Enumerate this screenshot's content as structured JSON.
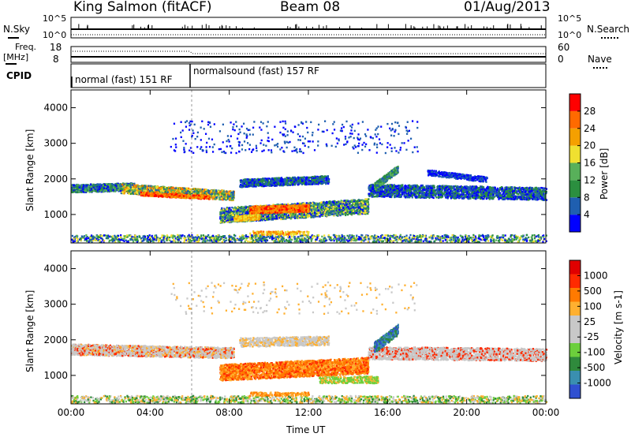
{
  "header": {
    "station": "King Salmon (fitACF)",
    "beam": "Beam 08",
    "date": "01/Aug/2013"
  },
  "noise_panel": {
    "left_label": "N.Sky",
    "left_ticks": [
      "10^5",
      "10^0"
    ],
    "right_label": "N.Search",
    "right_ticks": [
      "10^5",
      "10^0"
    ]
  },
  "freq_panel": {
    "left_label_top": "Freq.",
    "left_label_bottom": "[MHz]",
    "left_ticks": [
      "18",
      "8"
    ],
    "right_label": "Nave",
    "right_ticks": [
      "60",
      "0"
    ]
  },
  "cpid_panel": {
    "label": "CPID",
    "segments": [
      "normal (fast) 151 RF",
      "normalsound (fast) 157 RF"
    ]
  },
  "colors": {
    "power_scale": [
      "#0000ff",
      "#1f5fb0",
      "#2b8f3f",
      "#58b05a",
      "#f0e030",
      "#f5a000",
      "#ff6a00",
      "#ff0000"
    ],
    "velocity_scale": [
      "#3050d0",
      "#3a8fb0",
      "#2f8a3c",
      "#6ccf3c",
      "#c8c8c8",
      "#c8c8c8",
      "#ffb030",
      "#ff7a00",
      "#ff2a00",
      "#e00000"
    ]
  },
  "chart_data": [
    {
      "type": "heatmap",
      "name": "power",
      "xlabel": "",
      "ylabel": "Slant Range [km]",
      "xlim": [
        0,
        24
      ],
      "ylim": [
        200,
        4500
      ],
      "x_ticks": [
        "00:00",
        "04:00",
        "08:00",
        "12:00",
        "16:00",
        "20:00",
        "00:00"
      ],
      "y_ticks": [
        "1000",
        "2000",
        "3000",
        "4000"
      ],
      "colorbar_label": "Power [dB]",
      "colorbar_ticks": [
        "4",
        "8",
        "12",
        "16",
        "20",
        "24",
        "28"
      ],
      "regions": [
        {
          "t0": 0.0,
          "t1": 8.0,
          "r0": 1600,
          "r1": 2000,
          "level": "medium"
        },
        {
          "t0": 3.5,
          "t1": 7.0,
          "r0": 1450,
          "r1": 1700,
          "level": "high"
        },
        {
          "t0": 7.5,
          "t1": 15.0,
          "r0": 900,
          "r1": 1500,
          "level": "high"
        },
        {
          "t0": 15.0,
          "t1": 24.0,
          "r0": 1300,
          "r1": 2000,
          "level": "low"
        }
      ]
    },
    {
      "type": "heatmap",
      "name": "velocity",
      "xlabel": "Time UT",
      "ylabel": "Slant Range [km]",
      "xlim": [
        0,
        24
      ],
      "ylim": [
        200,
        4500
      ],
      "x_ticks": [
        "00:00",
        "04:00",
        "08:00",
        "12:00",
        "16:00",
        "20:00",
        "00:00"
      ],
      "y_ticks": [
        "1000",
        "2000",
        "3000",
        "4000"
      ],
      "colorbar_label": "Velocity [m s-1]",
      "colorbar_ticks": [
        "1000",
        "500",
        "100",
        "25",
        "-25",
        "-100",
        "-500",
        "-1000"
      ]
    }
  ]
}
